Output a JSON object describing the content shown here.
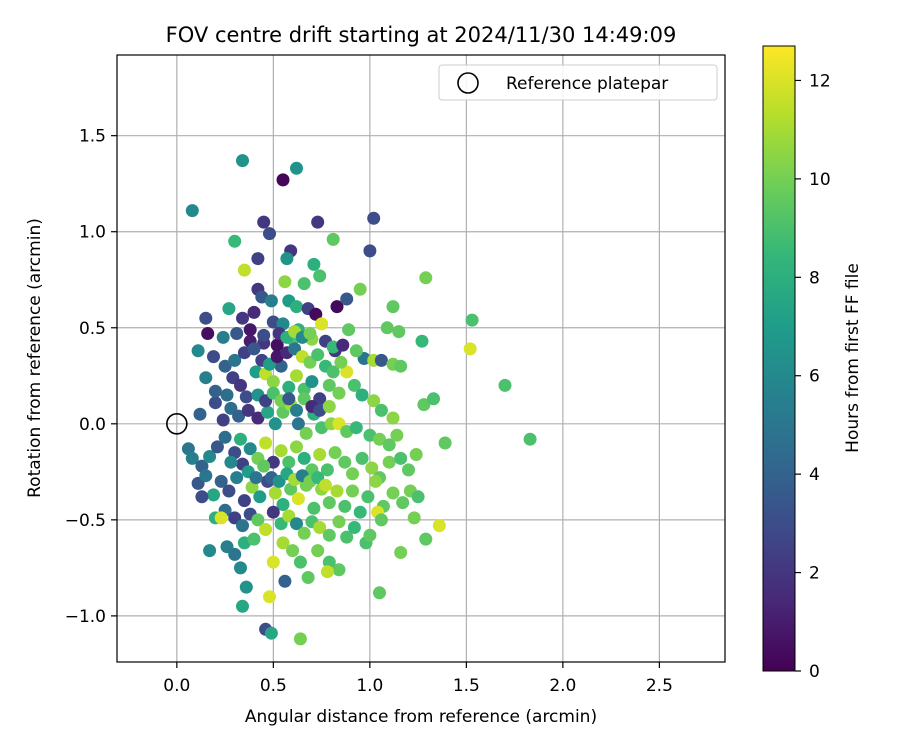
{
  "chart_data": {
    "type": "scatter",
    "title": "FOV centre drift starting at 2024/11/30 14:49:09",
    "xlabel": "Angular distance from reference (arcmin)",
    "ylabel": "Rotation from reference (arcmin)",
    "xlim": [
      -0.31,
      2.84
    ],
    "ylim": [
      -1.24,
      1.92
    ],
    "xticks": [
      0.0,
      0.5,
      1.0,
      1.5,
      2.0,
      2.5
    ],
    "xtick_labels": [
      "0.0",
      "0.5",
      "1.0",
      "1.5",
      "2.0",
      "2.5"
    ],
    "yticks": [
      -1.0,
      -0.5,
      0.0,
      0.5,
      1.0,
      1.5
    ],
    "ytick_labels": [
      "−1.0",
      "−0.5",
      "0.0",
      "0.5",
      "1.0",
      "1.5"
    ],
    "grid": true,
    "legend": {
      "placement": "top-right",
      "entries": [
        {
          "label": "Reference platepar",
          "marker": "open-circle"
        }
      ]
    },
    "reference_point": {
      "x": 0.0,
      "y": 0.0
    },
    "colorbar": {
      "label": "Hours from first FF file",
      "colormap": "viridis",
      "range": [
        0,
        12.7
      ],
      "ticks": [
        0,
        2,
        4,
        6,
        8,
        10,
        12
      ],
      "tick_labels": [
        "0",
        "2",
        "4",
        "6",
        "8",
        "10",
        "12"
      ]
    },
    "colormap_stops": [
      "#440154",
      "#482878",
      "#3e4989",
      "#31688e",
      "#26828e",
      "#1f9e89",
      "#35b779",
      "#6ece58",
      "#b5de2b",
      "#fde725"
    ],
    "points": [
      [
        0.55,
        1.27,
        0.2
      ],
      [
        0.45,
        1.05,
        2.0
      ],
      [
        0.73,
        1.05,
        2.0
      ],
      [
        1.02,
        1.07,
        3.0
      ],
      [
        0.34,
        1.37,
        6.5
      ],
      [
        0.62,
        1.33,
        6.5
      ],
      [
        0.08,
        1.11,
        6.0
      ],
      [
        1.0,
        0.9,
        3.0
      ],
      [
        0.59,
        0.9,
        2.0
      ],
      [
        0.81,
        0.96,
        9.5
      ],
      [
        0.48,
        0.99,
        3.0
      ],
      [
        0.3,
        0.95,
        8.5
      ],
      [
        0.42,
        0.86,
        2.5
      ],
      [
        0.57,
        0.86,
        6.5
      ],
      [
        0.71,
        0.83,
        8.0
      ],
      [
        0.35,
        0.8,
        11.5
      ],
      [
        0.74,
        0.77,
        9.0
      ],
      [
        0.56,
        0.74,
        10.5
      ],
      [
        0.66,
        0.73,
        9.0
      ],
      [
        0.42,
        0.7,
        2.0
      ],
      [
        0.44,
        0.66,
        3.5
      ],
      [
        0.49,
        0.64,
        5.5
      ],
      [
        0.58,
        0.64,
        7.0
      ],
      [
        0.62,
        0.61,
        8.0
      ],
      [
        0.68,
        0.6,
        2.5
      ],
      [
        0.72,
        0.57,
        0.3
      ],
      [
        0.83,
        0.61,
        0.3
      ],
      [
        0.88,
        0.65,
        3.5
      ],
      [
        0.95,
        0.7,
        10.0
      ],
      [
        1.12,
        0.61,
        9.5
      ],
      [
        1.29,
        0.76,
        10.0
      ],
      [
        1.53,
        0.54,
        9.0
      ],
      [
        0.15,
        0.55,
        3.0
      ],
      [
        0.27,
        0.6,
        7.5
      ],
      [
        0.34,
        0.55,
        2.0
      ],
      [
        0.4,
        0.58,
        1.5
      ],
      [
        0.5,
        0.53,
        3.0
      ],
      [
        0.55,
        0.52,
        6.0
      ],
      [
        0.63,
        0.49,
        8.0
      ],
      [
        0.75,
        0.52,
        12.0
      ],
      [
        0.89,
        0.49,
        9.5
      ],
      [
        1.09,
        0.5,
        9.5
      ],
      [
        1.15,
        0.48,
        9.5
      ],
      [
        1.27,
        0.43,
        8.5
      ],
      [
        0.16,
        0.47,
        0.5
      ],
      [
        0.24,
        0.45,
        5.5
      ],
      [
        0.31,
        0.47,
        3.5
      ],
      [
        0.38,
        0.43,
        1.0
      ],
      [
        0.45,
        0.42,
        2.0
      ],
      [
        0.52,
        0.41,
        0.5
      ],
      [
        0.6,
        0.44,
        9.0
      ],
      [
        0.7,
        0.44,
        10.5
      ],
      [
        0.82,
        0.38,
        2.0
      ],
      [
        0.97,
        0.34,
        5.0
      ],
      [
        1.02,
        0.33,
        11.0
      ],
      [
        1.06,
        0.33,
        3.5
      ],
      [
        1.12,
        0.31,
        10.0
      ],
      [
        1.16,
        0.3,
        9.5
      ],
      [
        1.52,
        0.39,
        12.0
      ],
      [
        1.7,
        0.2,
        9.0
      ],
      [
        0.11,
        0.38,
        6.0
      ],
      [
        0.19,
        0.35,
        3.0
      ],
      [
        0.25,
        0.3,
        4.0
      ],
      [
        0.29,
        0.24,
        2.5
      ],
      [
        0.33,
        0.2,
        2.0
      ],
      [
        0.36,
        0.14,
        3.0
      ],
      [
        0.41,
        0.27,
        7.0
      ],
      [
        0.46,
        0.26,
        11.5
      ],
      [
        0.5,
        0.22,
        10.5
      ],
      [
        0.54,
        0.3,
        4.0
      ],
      [
        0.58,
        0.19,
        8.0
      ],
      [
        0.62,
        0.25,
        11.0
      ],
      [
        0.66,
        0.18,
        9.0
      ],
      [
        0.7,
        0.22,
        6.5
      ],
      [
        0.74,
        0.13,
        2.5
      ],
      [
        0.79,
        0.2,
        9.5
      ],
      [
        0.84,
        0.16,
        10.0
      ],
      [
        0.88,
        0.27,
        12.0
      ],
      [
        0.92,
        0.2,
        9.0
      ],
      [
        0.96,
        0.15,
        8.0
      ],
      [
        1.02,
        0.12,
        10.5
      ],
      [
        1.06,
        0.07,
        9.0
      ],
      [
        1.12,
        0.03,
        10.5
      ],
      [
        1.28,
        0.1,
        9.5
      ],
      [
        1.33,
        0.13,
        9.0
      ],
      [
        0.15,
        0.24,
        5.5
      ],
      [
        0.12,
        0.05,
        4.0
      ],
      [
        0.2,
        0.11,
        3.0
      ],
      [
        0.24,
        0.02,
        2.5
      ],
      [
        0.28,
        0.08,
        4.5
      ],
      [
        0.32,
        0.04,
        4.0
      ],
      [
        0.37,
        0.07,
        2.0
      ],
      [
        0.42,
        0.03,
        1.5
      ],
      [
        0.47,
        0.06,
        7.5
      ],
      [
        0.51,
        0.0,
        6.5
      ],
      [
        0.55,
        0.06,
        9.5
      ],
      [
        0.59,
        0.1,
        11.0
      ],
      [
        0.63,
        0.0,
        5.0
      ],
      [
        0.67,
        -0.05,
        10.0
      ],
      [
        0.71,
        0.05,
        8.0
      ],
      [
        0.75,
        -0.02,
        9.0
      ],
      [
        0.8,
        0.0,
        10.5
      ],
      [
        0.84,
        0.0,
        12.0
      ],
      [
        0.88,
        -0.04,
        9.5
      ],
      [
        0.93,
        -0.02,
        8.5
      ],
      [
        1.0,
        -0.06,
        9.0
      ],
      [
        1.05,
        -0.08,
        10.0
      ],
      [
        1.1,
        -0.11,
        9.5
      ],
      [
        1.14,
        -0.06,
        10.0
      ],
      [
        1.39,
        -0.1,
        9.5
      ],
      [
        1.83,
        -0.08,
        9.0
      ],
      [
        0.06,
        -0.13,
        5.0
      ],
      [
        0.08,
        -0.18,
        5.5
      ],
      [
        0.13,
        -0.22,
        4.0
      ],
      [
        0.17,
        -0.17,
        6.0
      ],
      [
        0.21,
        -0.12,
        3.5
      ],
      [
        0.25,
        -0.07,
        4.5
      ],
      [
        0.3,
        -0.15,
        3.0
      ],
      [
        0.34,
        -0.21,
        2.5
      ],
      [
        0.38,
        -0.13,
        6.0
      ],
      [
        0.42,
        -0.18,
        10.0
      ],
      [
        0.46,
        -0.1,
        11.5
      ],
      [
        0.5,
        -0.2,
        2.0
      ],
      [
        0.54,
        -0.14,
        11.0
      ],
      [
        0.58,
        -0.2,
        9.0
      ],
      [
        0.62,
        -0.12,
        10.5
      ],
      [
        0.66,
        -0.18,
        8.0
      ],
      [
        0.7,
        -0.24,
        9.5
      ],
      [
        0.74,
        -0.16,
        11.0
      ],
      [
        0.78,
        -0.24,
        9.0
      ],
      [
        0.82,
        -0.15,
        10.0
      ],
      [
        0.87,
        -0.2,
        9.5
      ],
      [
        0.91,
        -0.26,
        10.0
      ],
      [
        0.96,
        -0.18,
        9.0
      ],
      [
        1.01,
        -0.23,
        10.5
      ],
      [
        1.05,
        -0.28,
        9.5
      ],
      [
        1.1,
        -0.2,
        10.0
      ],
      [
        1.16,
        -0.18,
        9.0
      ],
      [
        1.2,
        -0.24,
        9.5
      ],
      [
        1.24,
        -0.16,
        10.0
      ],
      [
        0.11,
        -0.31,
        3.5
      ],
      [
        0.15,
        -0.27,
        5.0
      ],
      [
        0.19,
        -0.37,
        7.5
      ],
      [
        0.23,
        -0.3,
        4.0
      ],
      [
        0.27,
        -0.35,
        3.0
      ],
      [
        0.31,
        -0.28,
        5.5
      ],
      [
        0.35,
        -0.4,
        2.5
      ],
      [
        0.39,
        -0.33,
        10.5
      ],
      [
        0.43,
        -0.38,
        7.0
      ],
      [
        0.47,
        -0.3,
        3.0
      ],
      [
        0.51,
        -0.36,
        11.0
      ],
      [
        0.55,
        -0.42,
        8.0
      ],
      [
        0.59,
        -0.34,
        9.5
      ],
      [
        0.63,
        -0.39,
        12.0
      ],
      [
        0.67,
        -0.32,
        10.0
      ],
      [
        0.71,
        -0.44,
        9.0
      ],
      [
        0.75,
        -0.34,
        10.5
      ],
      [
        0.79,
        -0.41,
        9.5
      ],
      [
        0.83,
        -0.35,
        11.0
      ],
      [
        0.87,
        -0.43,
        9.0
      ],
      [
        0.91,
        -0.35,
        10.0
      ],
      [
        0.95,
        -0.46,
        8.5
      ],
      [
        0.99,
        -0.38,
        9.0
      ],
      [
        1.03,
        -0.3,
        10.5
      ],
      [
        1.07,
        -0.43,
        9.5
      ],
      [
        1.12,
        -0.36,
        10.0
      ],
      [
        1.17,
        -0.41,
        9.5
      ],
      [
        1.21,
        -0.35,
        10.0
      ],
      [
        1.25,
        -0.38,
        9.0
      ],
      [
        0.13,
        -0.38,
        3.0
      ],
      [
        0.2,
        -0.49,
        8.0
      ],
      [
        0.25,
        -0.45,
        4.5
      ],
      [
        0.3,
        -0.49,
        2.5
      ],
      [
        0.34,
        -0.53,
        5.0
      ],
      [
        0.38,
        -0.47,
        3.0
      ],
      [
        0.42,
        -0.5,
        9.5
      ],
      [
        0.46,
        -0.55,
        11.5
      ],
      [
        0.5,
        -0.46,
        2.0
      ],
      [
        0.54,
        -0.52,
        8.5
      ],
      [
        0.58,
        -0.48,
        11.0
      ],
      [
        0.62,
        -0.52,
        6.0
      ],
      [
        0.66,
        -0.57,
        10.0
      ],
      [
        0.7,
        -0.51,
        9.0
      ],
      [
        0.74,
        -0.54,
        11.0
      ],
      [
        0.79,
        -0.58,
        9.5
      ],
      [
        0.84,
        -0.51,
        10.0
      ],
      [
        0.88,
        -0.59,
        9.0
      ],
      [
        0.92,
        -0.54,
        8.5
      ],
      [
        1.04,
        -0.46,
        12.0
      ],
      [
        1.06,
        -0.5,
        9.5
      ],
      [
        1.23,
        -0.49,
        10.0
      ],
      [
        1.36,
        -0.53,
        12.0
      ],
      [
        0.17,
        -0.66,
        6.0
      ],
      [
        0.26,
        -0.64,
        5.5
      ],
      [
        0.3,
        -0.68,
        5.0
      ],
      [
        0.35,
        -0.62,
        8.0
      ],
      [
        0.4,
        -0.6,
        9.0
      ],
      [
        0.5,
        -0.72,
        12.0
      ],
      [
        0.55,
        -0.62,
        11.0
      ],
      [
        0.6,
        -0.66,
        10.0
      ],
      [
        0.64,
        -0.72,
        9.0
      ],
      [
        0.68,
        -0.8,
        9.5
      ],
      [
        0.73,
        -0.66,
        10.0
      ],
      [
        0.79,
        -0.72,
        9.0
      ],
      [
        0.84,
        -0.76,
        9.5
      ],
      [
        0.98,
        -0.62,
        9.0
      ],
      [
        1.0,
        -0.58,
        9.5
      ],
      [
        1.16,
        -0.67,
        10.0
      ],
      [
        1.29,
        -0.6,
        9.5
      ],
      [
        0.33,
        -0.75,
        6.0
      ],
      [
        0.36,
        -0.85,
        6.5
      ],
      [
        0.34,
        -0.95,
        7.5
      ],
      [
        0.56,
        -0.82,
        4.0
      ],
      [
        0.48,
        -0.9,
        12.0
      ],
      [
        0.64,
        -1.12,
        10.0
      ],
      [
        0.46,
        -1.07,
        3.0
      ],
      [
        0.49,
        -1.09,
        7.5
      ],
      [
        1.05,
        -0.88,
        9.5
      ],
      [
        0.78,
        -0.77,
        11.5
      ],
      [
        0.23,
        -0.49,
        12.0
      ],
      [
        0.2,
        0.17,
        4.0
      ],
      [
        0.26,
        0.15,
        4.5
      ],
      [
        0.3,
        0.33,
        5.0
      ],
      [
        0.35,
        0.37,
        2.5
      ],
      [
        0.4,
        0.39,
        3.5
      ],
      [
        0.44,
        0.33,
        2.5
      ],
      [
        0.48,
        0.31,
        7.0
      ],
      [
        0.52,
        0.35,
        0.8
      ],
      [
        0.57,
        0.37,
        1.5
      ],
      [
        0.61,
        0.39,
        5.0
      ],
      [
        0.65,
        0.35,
        11.5
      ],
      [
        0.69,
        0.32,
        10.0
      ],
      [
        0.73,
        0.36,
        9.0
      ],
      [
        0.77,
        0.3,
        8.5
      ],
      [
        0.81,
        0.27,
        9.0
      ],
      [
        0.85,
        0.32,
        10.0
      ],
      [
        0.93,
        0.38,
        9.5
      ],
      [
        0.38,
        0.49,
        0.8
      ],
      [
        0.45,
        0.46,
        3.0
      ],
      [
        0.53,
        0.47,
        2.0
      ],
      [
        0.57,
        0.45,
        8.0
      ],
      [
        0.61,
        0.48,
        11.0
      ],
      [
        0.65,
        0.45,
        6.0
      ],
      [
        0.69,
        0.47,
        10.0
      ],
      [
        0.77,
        0.43,
        2.5
      ],
      [
        0.81,
        0.4,
        8.5
      ],
      [
        0.86,
        0.41,
        1.5
      ],
      [
        0.42,
        0.15,
        6.5
      ],
      [
        0.46,
        0.12,
        2.5
      ],
      [
        0.5,
        0.16,
        9.0
      ],
      [
        0.54,
        0.12,
        10.0
      ],
      [
        0.58,
        0.13,
        3.5
      ],
      [
        0.62,
        0.07,
        5.5
      ],
      [
        0.66,
        0.13,
        9.5
      ],
      [
        0.7,
        0.09,
        1.5
      ],
      [
        0.74,
        0.07,
        3.0
      ],
      [
        0.79,
        0.09,
        10.5
      ],
      [
        0.28,
        -0.2,
        6.0
      ],
      [
        0.33,
        -0.08,
        8.0
      ],
      [
        0.37,
        -0.25,
        7.0
      ],
      [
        0.41,
        -0.28,
        5.0
      ],
      [
        0.45,
        -0.22,
        9.5
      ],
      [
        0.49,
        -0.28,
        4.0
      ],
      [
        0.53,
        -0.3,
        6.5
      ],
      [
        0.57,
        -0.26,
        7.5
      ],
      [
        0.61,
        -0.29,
        11.0
      ],
      [
        0.65,
        -0.27,
        5.5
      ],
      [
        0.69,
        -0.3,
        10.0
      ],
      [
        0.73,
        -0.28,
        8.5
      ],
      [
        0.77,
        -0.32,
        11.5
      ]
    ]
  }
}
